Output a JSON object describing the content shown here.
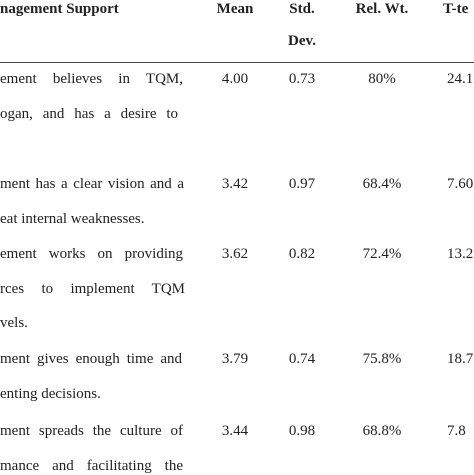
{
  "header": {
    "columns": [
      "nagement Support",
      "Mean",
      [
        "Std.",
        "Dev."
      ],
      "Rel. Wt.",
      "T-te"
    ]
  },
  "table": {
    "rows": [
      {
        "statement": [
          "ement believes in TQM,",
          "ogan, and has a desire to"
        ],
        "mean": "4.00",
        "std": "0.73",
        "rel": "80%",
        "t": "24.1"
      },
      {
        "statement": [
          "ment has a clear vision and a",
          "eat internal weaknesses."
        ],
        "mean": "3.42",
        "std": "0.97",
        "rel": "68.4%",
        "t": "7.60"
      },
      {
        "statement": [
          "ement works on providing",
          "rces to implement TQM",
          "vels."
        ],
        "mean": "3.62",
        "std": "0.82",
        "rel": "72.4%",
        "t": "13.2"
      },
      {
        "statement": [
          "ment gives enough time and",
          "enting decisions."
        ],
        "mean": "3.79",
        "std": "0.74",
        "rel": "75.8%",
        "t": "18.7"
      },
      {
        "statement": [
          "ment spreads the culture of",
          "mance and facilitating the"
        ],
        "mean": "3.44",
        "std": "0.98",
        "rel": "68.8%",
        "t": "7.8"
      }
    ]
  }
}
